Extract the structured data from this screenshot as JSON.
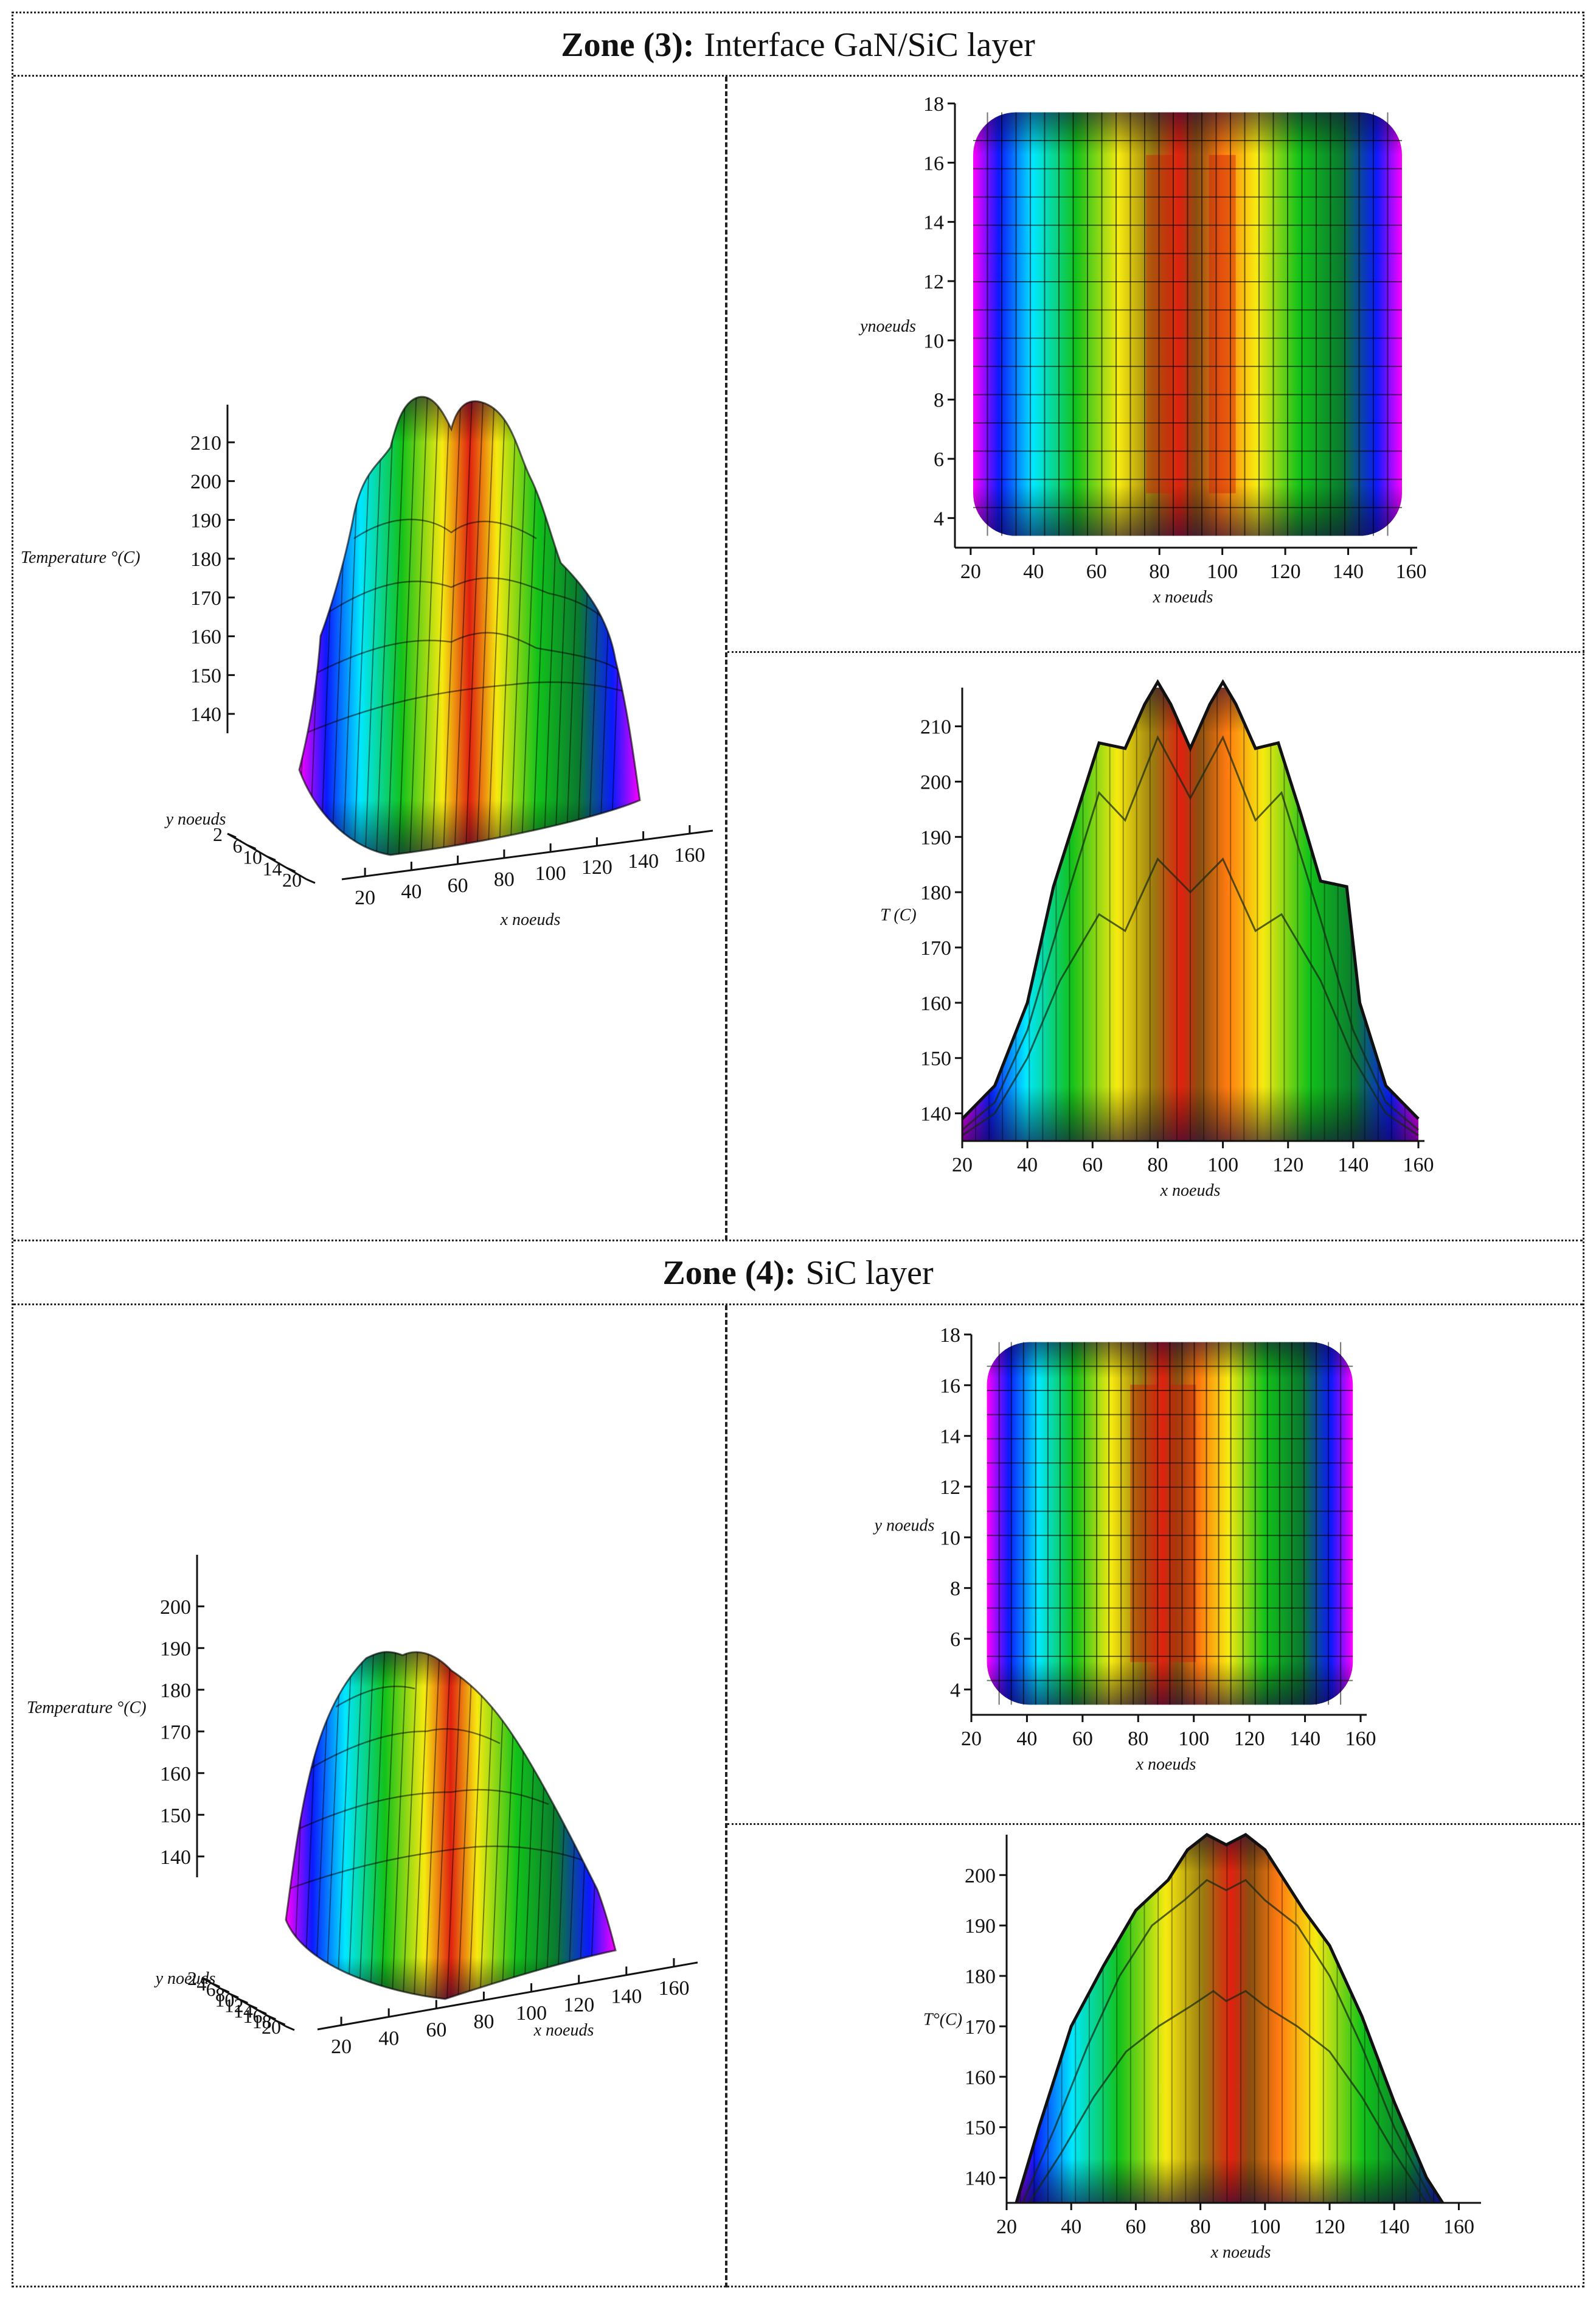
{
  "zone3": {
    "title_bold": "Zone (3):",
    "title_rest": "Interface GaN/SiC layer"
  },
  "zone4": {
    "title_bold": "Zone (4):",
    "title_rest": "SiC layer"
  },
  "colors": {
    "magenta": "#ff00ff",
    "blue": "#0a1aff",
    "cyan": "#00e8ff",
    "green": "#12c21a",
    "yellow": "#f6ea10",
    "orange": "#ff7a10",
    "red": "#e02010"
  },
  "chart_data": [
    {
      "id": "z3-surface",
      "type": "surface3d",
      "title": "",
      "zlabel": "Temperature °(C)",
      "ylabel": "y noeuds",
      "xlabel": "x noeuds",
      "z_ticks": [
        140,
        150,
        160,
        170,
        180,
        190,
        200,
        210
      ],
      "y_ticks": [
        2,
        6,
        10,
        14,
        20
      ],
      "x_ticks": [
        20,
        40,
        60,
        80,
        100,
        120,
        140,
        160
      ],
      "zlim": [
        135,
        215
      ]
    },
    {
      "id": "z3-top",
      "type": "heatmap",
      "ylabel": "ynoeuds",
      "xlabel": "x noeuds",
      "x_ticks": [
        20,
        40,
        60,
        80,
        100,
        120,
        140,
        160
      ],
      "y_ticks": [
        4,
        6,
        8,
        10,
        12,
        14,
        16,
        18
      ],
      "xlim": [
        15,
        160
      ],
      "ylim": [
        3,
        18
      ],
      "hot_columns": [
        80,
        100
      ]
    },
    {
      "id": "z3-profile",
      "type": "line",
      "ylabel": "T (C)",
      "xlabel": "x noeuds",
      "x_ticks": [
        20,
        40,
        60,
        80,
        100,
        120,
        140,
        160
      ],
      "y_ticks": [
        140,
        150,
        160,
        170,
        180,
        190,
        200,
        210
      ],
      "xlim": [
        20,
        160
      ],
      "ylim": [
        135,
        217
      ],
      "series": [
        {
          "name": "max",
          "x": [
            20,
            30,
            40,
            48,
            55,
            62,
            70,
            76,
            80,
            84,
            90,
            96,
            100,
            104,
            110,
            117,
            124,
            130,
            138,
            142,
            150,
            160
          ],
          "y": [
            139,
            145,
            160,
            181,
            194,
            207,
            206,
            214,
            218,
            214,
            206,
            214,
            218,
            214,
            206,
            207,
            194,
            182,
            181,
            160,
            145,
            139
          ]
        },
        {
          "name": "mid",
          "x": [
            20,
            30,
            40,
            50,
            62,
            70,
            80,
            90,
            100,
            110,
            118,
            130,
            140,
            150,
            160
          ],
          "y": [
            137,
            142,
            155,
            175,
            198,
            193,
            208,
            197,
            208,
            193,
            198,
            175,
            155,
            142,
            137
          ]
        },
        {
          "name": "low",
          "x": [
            20,
            30,
            40,
            50,
            62,
            70,
            80,
            90,
            100,
            110,
            118,
            130,
            140,
            150,
            160
          ],
          "y": [
            136,
            140,
            150,
            164,
            176,
            173,
            186,
            180,
            186,
            173,
            176,
            164,
            150,
            140,
            136
          ]
        }
      ]
    },
    {
      "id": "z4-surface",
      "type": "surface3d",
      "zlabel": "Temperature °(C)",
      "ylabel": "y noeuds",
      "xlabel": "x noeuds",
      "z_ticks": [
        140,
        150,
        160,
        170,
        180,
        190,
        200
      ],
      "y_ticks": [
        2,
        4,
        6,
        8,
        10,
        12,
        14,
        16,
        18,
        20
      ],
      "x_ticks": [
        20,
        40,
        60,
        80,
        100,
        120,
        140,
        160
      ],
      "zlim": [
        135,
        208
      ]
    },
    {
      "id": "z4-top",
      "type": "heatmap",
      "ylabel": "y noeuds",
      "xlabel": "x noeuds",
      "x_ticks": [
        20,
        40,
        60,
        80,
        100,
        120,
        140,
        160
      ],
      "y_ticks": [
        4,
        6,
        8,
        10,
        12,
        14,
        16,
        18
      ],
      "xlim": [
        20,
        160
      ],
      "ylim": [
        3,
        18
      ],
      "hot_columns": [
        82,
        96
      ]
    },
    {
      "id": "z4-profile",
      "type": "line",
      "ylabel": "T°(C)",
      "xlabel": "x noeuds",
      "x_ticks": [
        20,
        40,
        60,
        80,
        100,
        120,
        140,
        160
      ],
      "y_ticks": [
        140,
        150,
        160,
        170,
        180,
        190,
        200
      ],
      "xlim": [
        20,
        165
      ],
      "ylim": [
        135,
        208
      ],
      "series": [
        {
          "name": "max",
          "x": [
            23,
            30,
            40,
            50,
            60,
            70,
            76,
            82,
            88,
            94,
            100,
            106,
            112,
            120,
            130,
            140,
            150,
            155
          ],
          "y": [
            135,
            150,
            170,
            182,
            193,
            199,
            205,
            208,
            206,
            208,
            205,
            199,
            193,
            186,
            172,
            155,
            140,
            135
          ]
        },
        {
          "name": "mid",
          "x": [
            25,
            35,
            45,
            55,
            65,
            75,
            82,
            88,
            94,
            100,
            110,
            120,
            130,
            140,
            152
          ],
          "y": [
            135,
            150,
            166,
            180,
            190,
            195,
            199,
            197,
            199,
            195,
            190,
            180,
            166,
            150,
            135
          ]
        },
        {
          "name": "low",
          "x": [
            27,
            37,
            47,
            57,
            67,
            77,
            84,
            88,
            94,
            100,
            110,
            120,
            130,
            140,
            150
          ],
          "y": [
            135,
            145,
            156,
            165,
            170,
            174,
            177,
            175,
            177,
            174,
            170,
            165,
            156,
            145,
            135
          ]
        }
      ]
    }
  ]
}
